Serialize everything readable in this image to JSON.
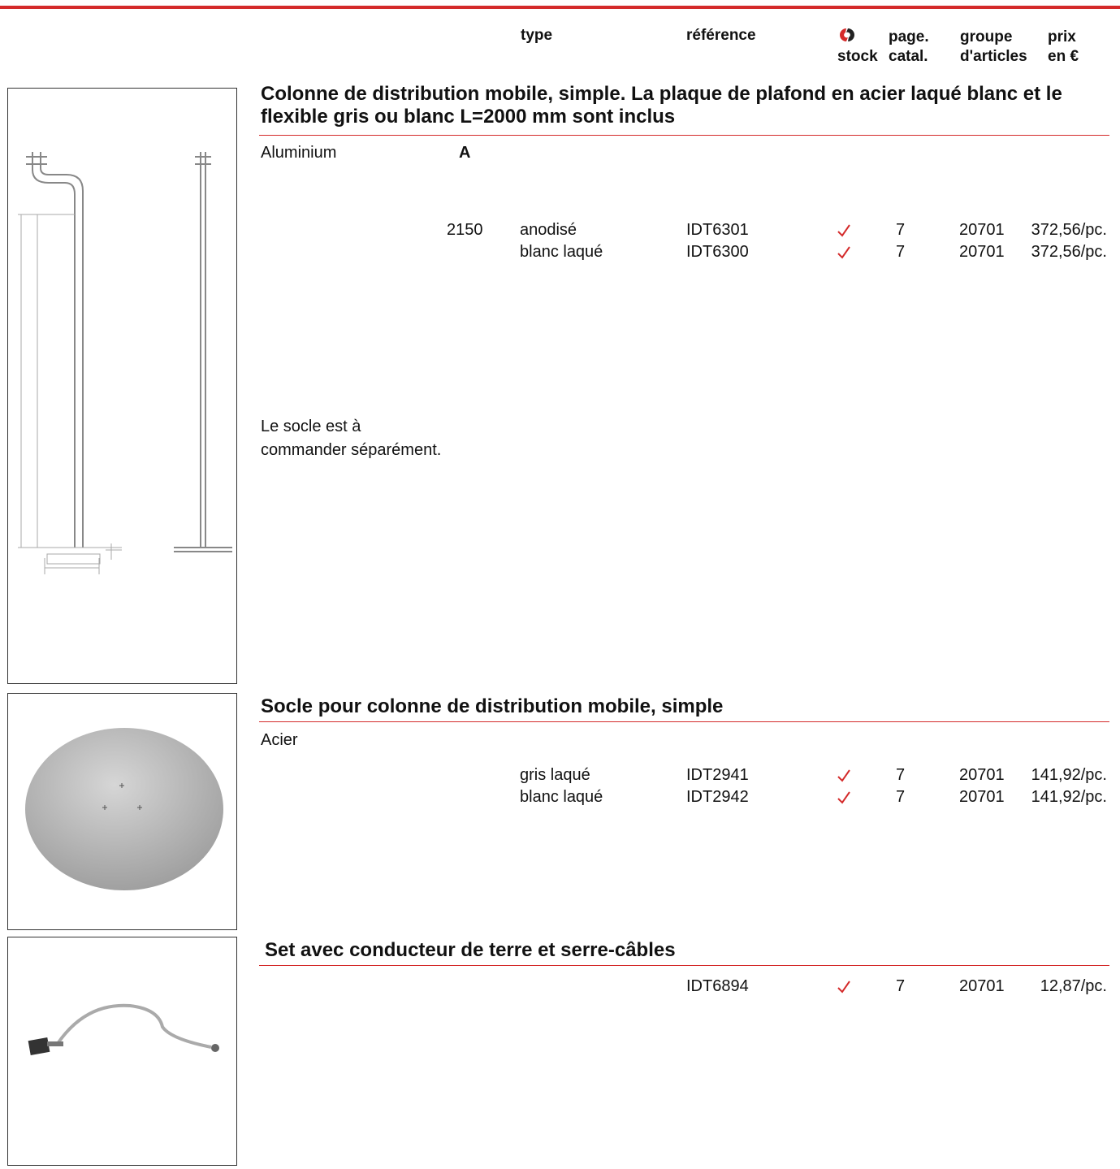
{
  "header": {
    "type": "type",
    "reference": "référence",
    "stock": "stock",
    "page": [
      "page.",
      "catal."
    ],
    "group": [
      "groupe",
      "d'articles"
    ],
    "price": [
      "prix",
      "en €"
    ]
  },
  "sections": [
    {
      "title": "Colonne de distribution mobile, simple. La plaque de plafond en acier laqué blanc et le flexible gris ou blanc L=2000 mm sont inclus",
      "material": "Aluminium",
      "dimension_label": "A",
      "note": [
        "Le socle est à",
        "commander séparément."
      ],
      "rows": [
        {
          "dimension": "2150",
          "type": "anodisé",
          "reference": "IDT6301",
          "page": "7",
          "group": "20701",
          "price": "372,56/pc."
        },
        {
          "type": "blanc laqué",
          "reference": "IDT6300",
          "page": "7",
          "group": "20701",
          "price": "372,56/pc."
        }
      ]
    },
    {
      "title": "Socle pour colonne de distribution mobile, simple",
      "material": "Acier",
      "rows": [
        {
          "type": "gris laqué",
          "reference": "IDT2941",
          "page": "7",
          "group": "20701",
          "price": "141,92/pc."
        },
        {
          "type": "blanc laqué",
          "reference": "IDT2942",
          "page": "7",
          "group": "20701",
          "price": "141,92/pc."
        }
      ]
    },
    {
      "title": "Set avec conducteur de terre et serre-câbles",
      "rows": [
        {
          "reference": "IDT6894",
          "page": "7",
          "group": "20701",
          "price": "12,87/pc."
        }
      ]
    }
  ]
}
